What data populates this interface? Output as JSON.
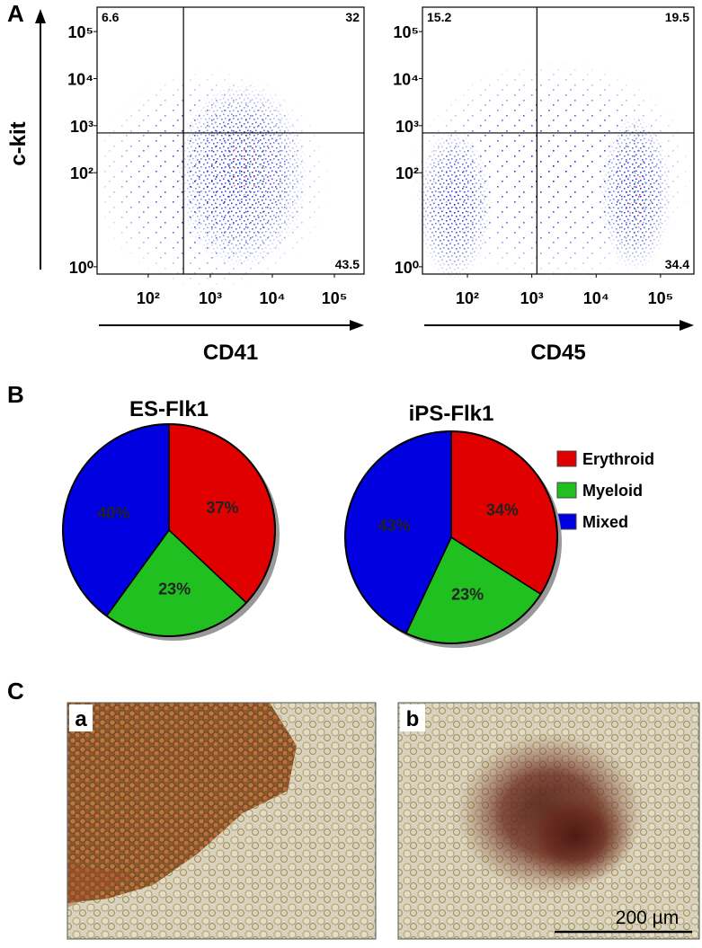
{
  "chart_data": [
    {
      "type": "scatter",
      "panel_label": "A",
      "xlabel": "CD41",
      "ylabel": "c-kit",
      "xscale": "log",
      "yscale": "log",
      "xlim": [
        15,
        300000
      ],
      "ylim": [
        0.7,
        330000
      ],
      "xticks": [
        {
          "value": 100,
          "label": "10²"
        },
        {
          "value": 1000,
          "label": "10³"
        },
        {
          "value": 10000,
          "label": "10⁴"
        },
        {
          "value": 100000,
          "label": "10⁵"
        }
      ],
      "yticks": [
        {
          "value": 1,
          "label": "10⁰"
        },
        {
          "value": 100,
          "label": "10²"
        },
        {
          "value": 1000,
          "label": "10³"
        },
        {
          "value": 10000,
          "label": "10⁴"
        },
        {
          "value": 100000,
          "label": "10⁵"
        }
      ],
      "gate": {
        "x": 370,
        "y": 700
      },
      "quadrant_values": {
        "upper_left": 6.6,
        "upper_right": 32,
        "lower_right": 43.5
      }
    },
    {
      "type": "scatter",
      "xlabel": "CD45",
      "xscale": "log",
      "yscale": "log",
      "xlim": [
        20,
        330000
      ],
      "ylim": [
        0.7,
        330000
      ],
      "xticks": [
        {
          "value": 100,
          "label": "10²"
        },
        {
          "value": 1000,
          "label": "10³"
        },
        {
          "value": 10000,
          "label": "10⁴"
        },
        {
          "value": 100000,
          "label": "10⁵"
        }
      ],
      "yticks": [
        {
          "value": 1,
          "label": "10⁰"
        },
        {
          "value": 100,
          "label": "10²"
        },
        {
          "value": 1000,
          "label": "10³"
        },
        {
          "value": 10000,
          "label": "10⁴"
        },
        {
          "value": 100000,
          "label": "10⁵"
        }
      ],
      "gate": {
        "x": 1200,
        "y": 700
      },
      "quadrant_values": {
        "upper_left": 15.2,
        "upper_right": 19.5,
        "lower_right": 34.4
      }
    },
    {
      "type": "pie",
      "panel_label": "B",
      "title": "ES-Flk1",
      "legend": "right",
      "categories": [
        "Erythroid",
        "Myeloid",
        "Mixed"
      ],
      "values": [
        37,
        23,
        40
      ],
      "value_labels": [
        "37%",
        "23%",
        "40%"
      ],
      "colors": [
        "#e00000",
        "#20c020",
        "#0000e0"
      ]
    },
    {
      "type": "pie",
      "title": "iPS-Flk1",
      "values": [
        34,
        23,
        43
      ],
      "value_labels": [
        "34%",
        "23%",
        "43%"
      ],
      "colors": [
        "#e00000",
        "#20c020",
        "#0000e0"
      ]
    }
  ],
  "panel_c": {
    "panel_label": "C",
    "images": [
      {
        "label": "a"
      },
      {
        "label": "b"
      }
    ],
    "scale_bar": "200 µm"
  }
}
